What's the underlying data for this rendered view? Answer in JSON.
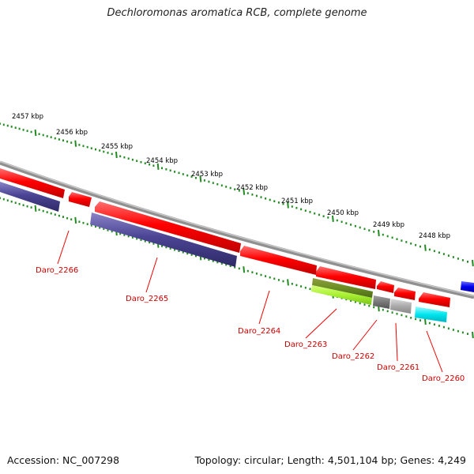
{
  "title": "Dechloromonas aromatica RCB, complete genome",
  "footer": {
    "accession": "Accession: NC_007298",
    "summary": "Topology: circular; Length: 4,501,104 bp; Genes: 4,249"
  },
  "kbp_labels": [
    "2457 kbp",
    "2456 kbp",
    "2455 kbp",
    "2454 kbp",
    "2453 kbp",
    "2452 kbp",
    "2451 kbp",
    "2450 kbp",
    "2449 kbp",
    "2448 kbp"
  ],
  "genes": [
    {
      "label": "Daro_2266",
      "color": "#4b4494"
    },
    {
      "label": "Daro_2265",
      "color": "#4b4494"
    },
    {
      "label": "Daro_2264",
      "color": "#ff0000"
    },
    {
      "label": "Daro_2263",
      "color": "#6b8e23"
    },
    {
      "label": "Daro_2262",
      "color": "#777777"
    },
    {
      "label": "Daro_2261",
      "color": "#aaaaaa"
    },
    {
      "label": "Daro_2260",
      "color": "#00e5ee"
    }
  ],
  "colors": {
    "forward_gene": "#ff0000",
    "backbone": "#909090",
    "tick_mark": "#228b22",
    "label_line": "#ee0000",
    "label_text": "#cc0000",
    "edge_gene": "#0000ee"
  }
}
